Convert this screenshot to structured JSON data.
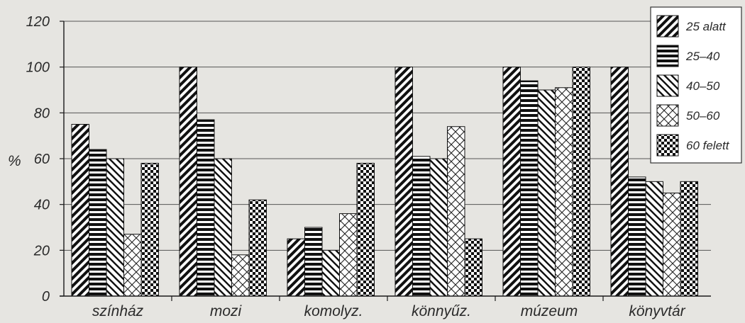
{
  "chart_data": {
    "type": "bar",
    "title": "",
    "xlabel": "",
    "ylabel": "%",
    "ylim": [
      0,
      120
    ],
    "yticks": [
      0,
      20,
      40,
      60,
      80,
      100,
      120
    ],
    "grid": true,
    "legend_position": "top-right",
    "categories": [
      "színház",
      "mozi",
      "komolyz.",
      "könnyűz.",
      "múzeum",
      "könyvtár"
    ],
    "series": [
      {
        "name": "25 alatt",
        "pattern": "diagonal-forward",
        "values": [
          75,
          100,
          25,
          100,
          100,
          100
        ]
      },
      {
        "name": "25–40",
        "pattern": "horizontal",
        "values": [
          64,
          77,
          30,
          61,
          94,
          52
        ]
      },
      {
        "name": "40–50",
        "pattern": "diagonal-backward",
        "values": [
          60,
          60,
          20,
          60,
          90,
          50
        ]
      },
      {
        "name": "50–60",
        "pattern": "crosshatch",
        "values": [
          27,
          18,
          36,
          74,
          91,
          45
        ]
      },
      {
        "name": "60 felett",
        "pattern": "checkerboard",
        "values": [
          58,
          42,
          58,
          25,
          100,
          50
        ]
      }
    ]
  },
  "colors": {
    "background": "#e6e5e1",
    "ink": "#1a1a1a",
    "grid": "#555555"
  }
}
